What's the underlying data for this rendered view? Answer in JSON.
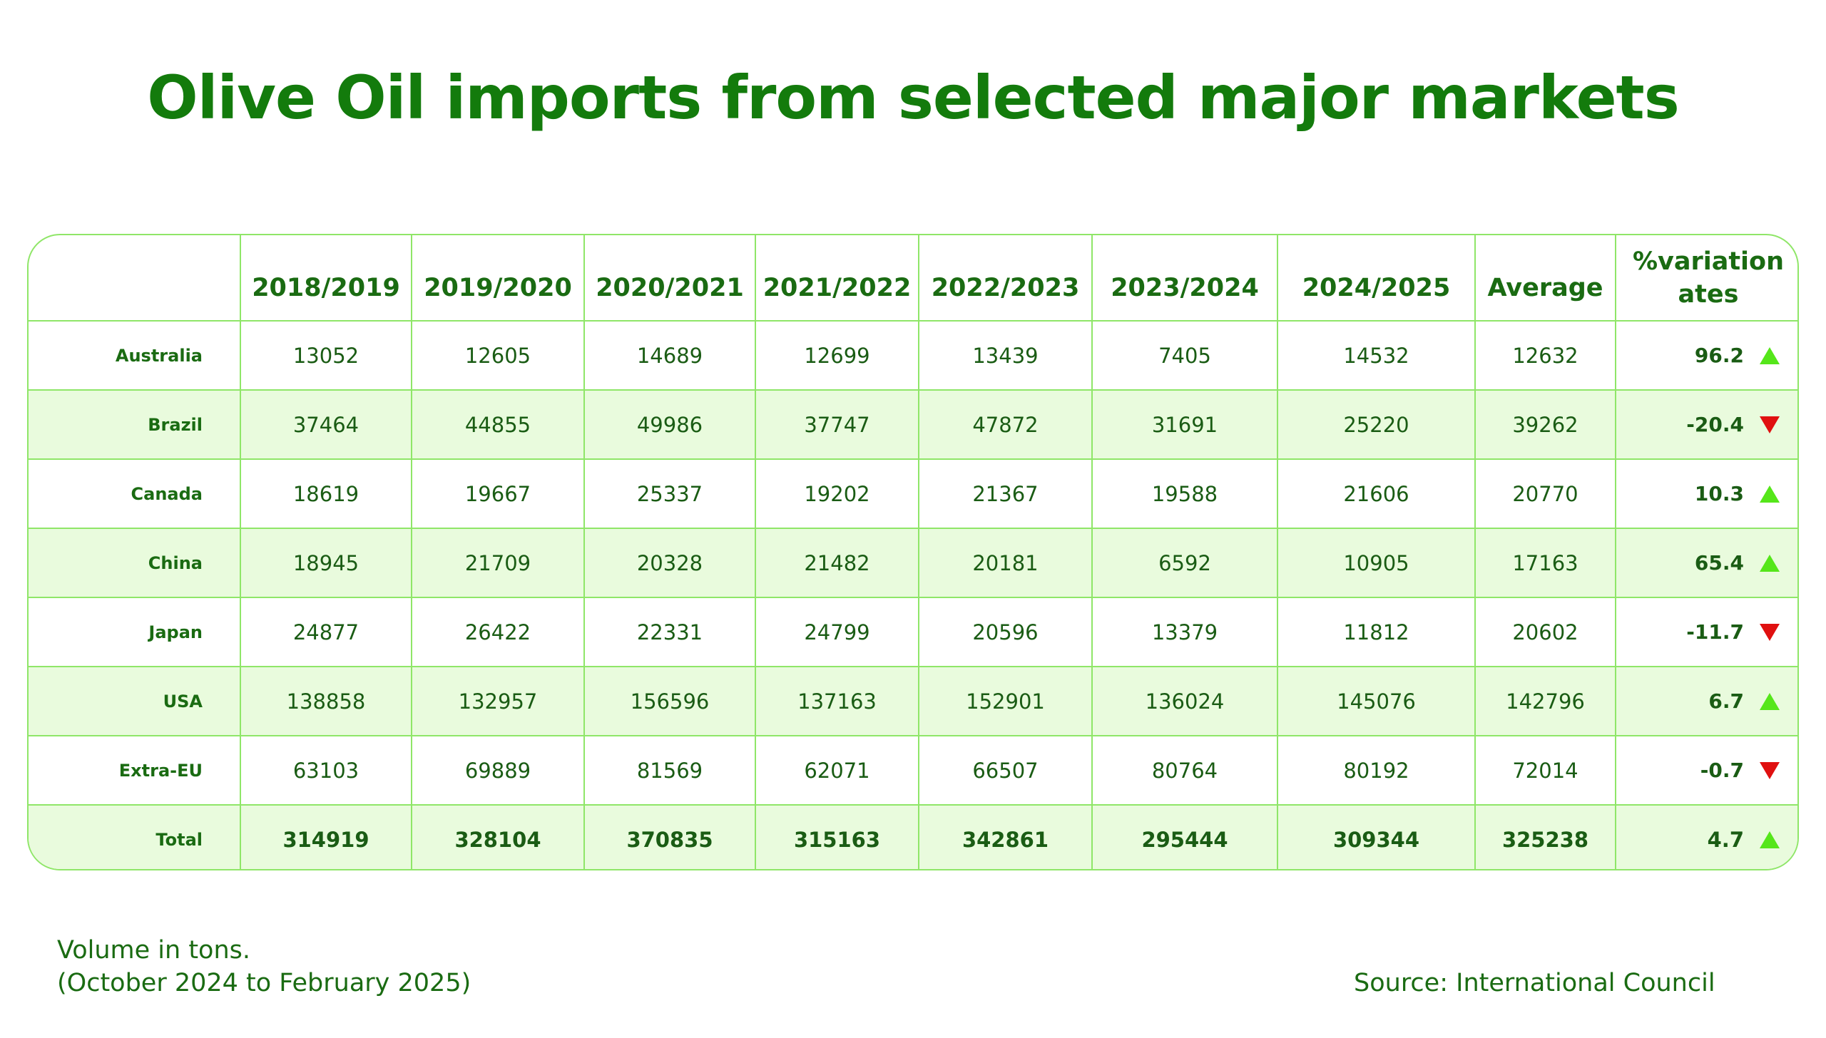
{
  "title": "Olive Oil imports from selected major markets",
  "colors": {
    "title": "#137b0c",
    "border": "#8fe668",
    "shade": "#e9fbdd",
    "up": "#55e61a",
    "down": "#e01010"
  },
  "note_line1": "Volume in tons.",
  "note_line2": "(October 2024 to February 2025)",
  "source": "Source: International Council",
  "chart_data": {
    "type": "table",
    "headers": [
      "",
      "2018/2019",
      "2019/2020",
      "2020/2021",
      "2021/2022",
      "2022/2023",
      "2023/2024",
      "2024/2025",
      "Average"
    ],
    "variation_header": [
      "%variation",
      "ates"
    ],
    "rows": [
      {
        "country": "Australia",
        "values": [
          "13052",
          "12605",
          "14689",
          "12699",
          "13439",
          "7405",
          "14532",
          "12632"
        ],
        "variation": "96.2",
        "direction": "up"
      },
      {
        "country": "Brazil",
        "values": [
          "37464",
          "44855",
          "49986",
          "37747",
          "47872",
          "31691",
          "25220",
          "39262"
        ],
        "variation": "-20.4",
        "direction": "down"
      },
      {
        "country": "Canada",
        "values": [
          "18619",
          "19667",
          "25337",
          "19202",
          "21367",
          "19588",
          "21606",
          "20770"
        ],
        "variation": "10.3",
        "direction": "up"
      },
      {
        "country": "China",
        "values": [
          "18945",
          "21709",
          "20328",
          "21482",
          "20181",
          "6592",
          "10905",
          "17163"
        ],
        "variation": "65.4",
        "direction": "up"
      },
      {
        "country": "Japan",
        "values": [
          "24877",
          "26422",
          "22331",
          "24799",
          "20596",
          "13379",
          "11812",
          "20602"
        ],
        "variation": "-11.7",
        "direction": "down"
      },
      {
        "country": "USA",
        "values": [
          "138858",
          "132957",
          "156596",
          "137163",
          "152901",
          "136024",
          "145076",
          "142796"
        ],
        "variation": "6.7",
        "direction": "up"
      },
      {
        "country": "Extra-EU",
        "values": [
          "63103",
          "69889",
          "81569",
          "62071",
          "66507",
          "80764",
          "80192",
          "72014"
        ],
        "variation": "-0.7",
        "direction": "down"
      },
      {
        "country": "Total",
        "values": [
          "314919",
          "328104",
          "370835",
          "315163",
          "342861",
          "295444",
          "309344",
          "325238"
        ],
        "variation": "4.7",
        "direction": "up",
        "total": true
      }
    ]
  }
}
